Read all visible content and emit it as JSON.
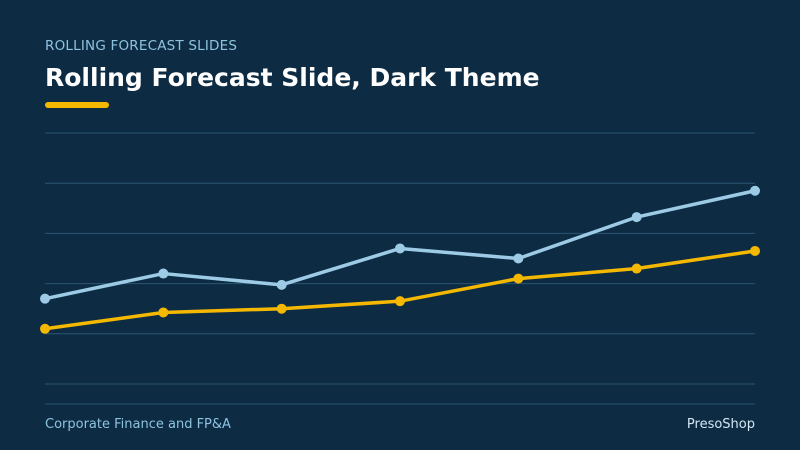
{
  "slide": {
    "overline": "ROLLING FORECAST SLIDES",
    "title": "Rolling Forecast Slide, Dark Theme",
    "footer_left": "Corporate Finance and FP&A",
    "footer_right": "PresoShop"
  },
  "colors": {
    "background": "#0d2c44",
    "accent": "#f5b800",
    "series_light_blue": "#9dcbe6",
    "gridline": "#2d5470"
  },
  "chart_data": {
    "type": "line",
    "x": [
      1,
      2,
      3,
      4,
      5,
      6,
      7
    ],
    "ylim": [
      0,
      100
    ],
    "yticks": [
      0,
      20,
      40,
      60,
      80
    ],
    "grid": true,
    "legend": "none",
    "series": [
      {
        "values": [
          34,
          44,
          39.5,
          54,
          50,
          66.5,
          77
        ],
        "color": "#9dcbe6"
      },
      {
        "values": [
          22,
          28.5,
          30,
          33,
          42,
          46,
          53
        ],
        "color": "#f5b800"
      }
    ]
  }
}
